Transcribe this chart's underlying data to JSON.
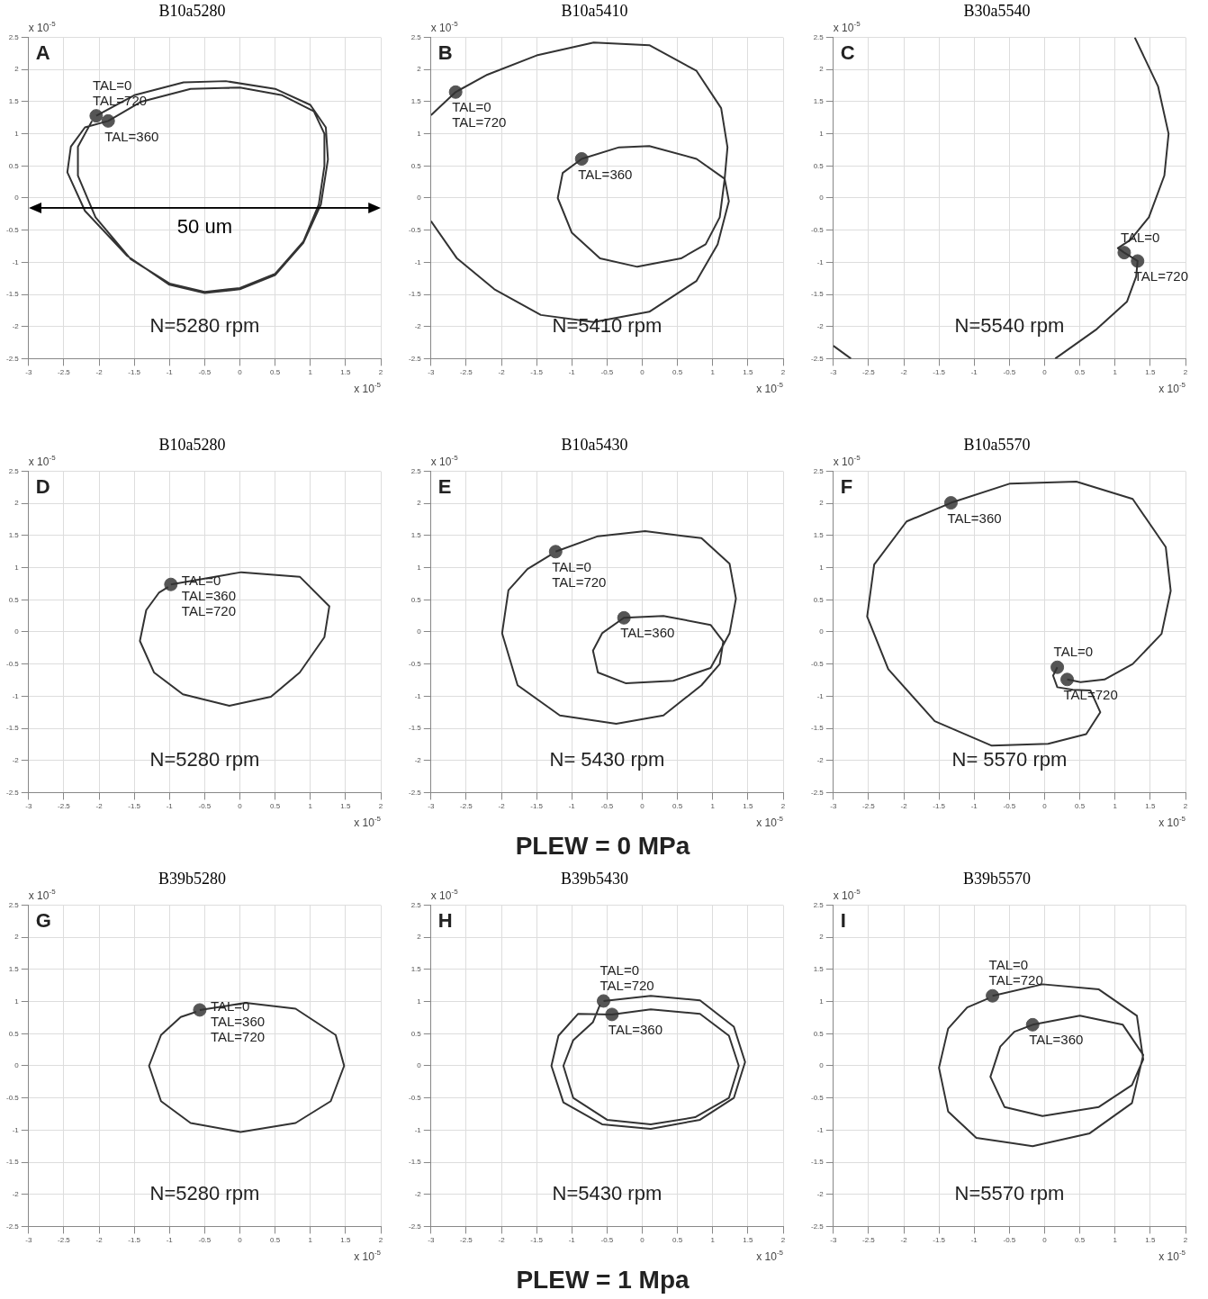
{
  "chart_data": [
    {
      "type": "line",
      "title": "B10a5280",
      "xlabel": "x 10$^{-5}$",
      "ylabel": "x 10$^{-5}$",
      "xlim": [
        -3,
        2
      ],
      "ylim": [
        -2.5,
        2.5
      ],
      "xticks": [
        -3,
        -2.5,
        -2,
        -1.5,
        -1,
        -0.5,
        0,
        0.5,
        1,
        1.5,
        2
      ],
      "yticks": [
        -2.5,
        -2,
        -1.5,
        -1,
        -0.5,
        0,
        0.5,
        1,
        1.5,
        2,
        2.5
      ],
      "grid": true,
      "ref_lines": [
        {
          "axis": "y",
          "value": -0.15,
          "label": "50 um",
          "color": "#000000"
        }
      ],
      "annotations": [
        "A",
        "N=5280 rpm",
        {
          "text": "TAL=0",
          "x": -2.04,
          "y": 1.28
        },
        {
          "text": "TAL=720",
          "x": -2.04,
          "y": 1.28
        },
        {
          "text": "TAL=360",
          "x": -1.87,
          "y": 1.2
        }
      ],
      "series": [
        {
          "type": "line",
          "marker": "none",
          "color": "#333333",
          "x": [
            -2.04,
            -1.5,
            -0.8,
            -0.2,
            0.5,
            1.0,
            1.22,
            1.25,
            1.15,
            0.9,
            0.5,
            0,
            -0.5,
            -1.0,
            -1.6,
            -2.2,
            -2.45,
            -2.4,
            -2.2,
            -1.87,
            -1.4,
            -0.7,
            0,
            0.6,
            1.05,
            1.2,
            1.2,
            1.12,
            0.9,
            0.5,
            0,
            -0.5,
            -1.0,
            -1.55,
            -2.05,
            -2.3,
            -2.3,
            -2.1
          ],
          "values": [
            1.28,
            1.6,
            1.8,
            1.82,
            1.7,
            1.45,
            1.1,
            0.6,
            -0.1,
            -0.7,
            -1.2,
            -1.42,
            -1.48,
            -1.35,
            -0.9,
            -0.2,
            0.4,
            0.8,
            1.1,
            1.2,
            1.5,
            1.7,
            1.72,
            1.6,
            1.35,
            1.0,
            0.5,
            -0.1,
            -0.68,
            -1.18,
            -1.4,
            -1.46,
            -1.33,
            -0.95,
            -0.3,
            0.35,
            0.8,
            1.2
          ]
        },
        {
          "type": "scatter",
          "marker": "circle",
          "color": "#555555",
          "x": [
            -2.04,
            -1.87
          ],
          "values": [
            1.28,
            1.2
          ]
        }
      ]
    },
    {
      "type": "line",
      "title": "B10a5410",
      "xlabel": "x 10$^{-5}$",
      "ylabel": "x 10$^{-5}$",
      "xlim": [
        -3,
        2
      ],
      "ylim": [
        -2.5,
        2.5
      ],
      "xticks": [
        -3,
        -2.5,
        -2,
        -1.5,
        -1,
        -0.5,
        0,
        0.5,
        1,
        1.5,
        2
      ],
      "yticks": [
        -2.5,
        -2,
        -1.5,
        -1,
        -0.5,
        0,
        0.5,
        1,
        1.5,
        2,
        2.5
      ],
      "grid": true,
      "annotations": [
        "B",
        "N=5410 rpm",
        {
          "text": "TAL=0",
          "x": -2.65,
          "y": 1.65
        },
        {
          "text": "TAL=720",
          "x": -2.65,
          "y": 1.65
        },
        {
          "text": "TAL=360",
          "x": -0.86,
          "y": 0.61
        }
      ],
      "series": [
        {
          "type": "line",
          "marker": "none",
          "color": "#333333",
          "x": [
            -3,
            -2.65,
            -2.2,
            -1.5,
            -0.69,
            0.1,
            0.77,
            1.12,
            1.21,
            1.17,
            1.1,
            0.9,
            0.55,
            -0.07,
            -0.6,
            -1.0,
            -1.2,
            -1.13,
            -0.86,
            -0.33,
            0.1,
            0.77,
            1.17,
            1.23,
            1.07,
            0.77,
            0.1,
            -0.69,
            -1.44,
            -2.1,
            -2.63,
            -3
          ],
          "values": [
            1.29,
            1.65,
            1.92,
            2.22,
            2.42,
            2.38,
            1.98,
            1.4,
            0.79,
            0.3,
            -0.3,
            -0.72,
            -0.94,
            -1.07,
            -0.94,
            -0.54,
            0,
            0.39,
            0.61,
            0.79,
            0.81,
            0.61,
            0.3,
            -0.05,
            -0.72,
            -1.29,
            -1.77,
            -1.93,
            -1.82,
            -1.42,
            -0.94,
            -0.36
          ]
        },
        {
          "type": "scatter",
          "marker": "circle",
          "color": "#555555",
          "x": [
            -2.65,
            -0.86
          ],
          "values": [
            1.65,
            0.61
          ]
        }
      ]
    },
    {
      "type": "line",
      "title": "B30a5540",
      "xlabel": "x 10$^{-5}$",
      "ylabel": "x 10$^{-5}$",
      "xlim": [
        -3,
        2
      ],
      "ylim": [
        -2.5,
        2.5
      ],
      "xticks": [
        -3,
        -2.5,
        -2,
        -1.5,
        -1,
        -0.5,
        0,
        0.5,
        1,
        1.5,
        2
      ],
      "yticks": [
        -2.5,
        -2,
        -1.5,
        -1,
        -0.5,
        0,
        0.5,
        1,
        1.5,
        2,
        2.5
      ],
      "grid": true,
      "annotations": [
        "C",
        "N=5540 rpm",
        {
          "text": "TAL=0",
          "x": 1.13,
          "y": -0.85
        },
        {
          "text": "TAL=720",
          "x": 1.32,
          "y": -0.98
        }
      ],
      "series": [
        {
          "type": "line",
          "marker": "none",
          "color": "#333333",
          "x": [
            1.28,
            1.61,
            1.76,
            1.7,
            1.48,
            1.22,
            1.04,
            1.13,
            1.32,
            1.3,
            1.17,
            0.74,
            0.15,
            null,
            -3,
            -2.75
          ],
          "values": [
            2.5,
            1.74,
            1.0,
            0.35,
            -0.3,
            -0.65,
            -0.78,
            -0.85,
            -0.98,
            -1.22,
            -1.61,
            -2.04,
            -2.5,
            null,
            -2.3,
            -2.5
          ]
        },
        {
          "type": "scatter",
          "marker": "circle",
          "color": "#555555",
          "x": [
            1.13,
            1.32
          ],
          "values": [
            -0.85,
            -0.98
          ]
        }
      ]
    },
    {
      "type": "line",
      "title": "B10a5280",
      "xlabel": "x 10$^{-5}$",
      "ylabel": "x 10$^{-5}$",
      "xlim": [
        -3,
        2
      ],
      "ylim": [
        -2.5,
        2.5
      ],
      "xticks": [
        -3,
        -2.5,
        -2,
        -1.5,
        -1,
        -0.5,
        0,
        0.5,
        1,
        1.5,
        2
      ],
      "yticks": [
        -2.5,
        -2,
        -1.5,
        -1,
        -0.5,
        0,
        0.5,
        1,
        1.5,
        2,
        2.5
      ],
      "grid": true,
      "annotations": [
        "D",
        "N=5280 rpm",
        {
          "text": "TAL=0",
          "x": -0.98,
          "y": 0.74
        },
        {
          "text": "TAL=360",
          "x": -0.98,
          "y": 0.74
        },
        {
          "text": "TAL=720",
          "x": -0.98,
          "y": 0.74
        }
      ],
      "series": [
        {
          "type": "line",
          "marker": "none",
          "color": "#333333",
          "x": [
            -0.98,
            0.02,
            0.85,
            1.27,
            1.2,
            0.85,
            0.44,
            -0.15,
            -0.81,
            -1.22,
            -1.42,
            -1.33,
            -1.15,
            -1.02
          ],
          "values": [
            0.74,
            0.93,
            0.86,
            0.4,
            -0.08,
            -0.63,
            -1.01,
            -1.15,
            -0.97,
            -0.63,
            -0.14,
            0.34,
            0.61,
            0.7
          ]
        },
        {
          "type": "scatter",
          "marker": "circle",
          "color": "#555555",
          "x": [
            -0.98
          ],
          "values": [
            0.74
          ]
        }
      ]
    },
    {
      "type": "line",
      "title": "B10a5430",
      "xlabel": "x 10$^{-5}$",
      "ylabel": "x 10$^{-5}$",
      "xlim": [
        -3,
        2
      ],
      "ylim": [
        -2.5,
        2.5
      ],
      "xticks": [
        -3,
        -2.5,
        -2,
        -1.5,
        -1,
        -0.5,
        0,
        0.5,
        1,
        1.5,
        2
      ],
      "yticks": [
        -2.5,
        -2,
        -1.5,
        -1,
        -0.5,
        0,
        0.5,
        1,
        1.5,
        2,
        2.5
      ],
      "grid": true,
      "annotations": [
        "E",
        "N= 5430 rpm",
        "PLEW = 0 MPa",
        {
          "text": "TAL=0",
          "x": -1.23,
          "y": 1.25
        },
        {
          "text": "TAL=720",
          "x": -1.23,
          "y": 1.25
        },
        {
          "text": "TAL=360",
          "x": -0.26,
          "y": 0.22
        }
      ],
      "series": [
        {
          "type": "line",
          "marker": "none",
          "color": "#333333",
          "x": [
            -1.23,
            -0.63,
            0.04,
            0.84,
            1.24,
            1.33,
            1.24,
            1.1,
            0.97,
            0.44,
            -0.23,
            -0.63,
            -0.7,
            -0.57,
            -0.26,
            0.3,
            0.97,
            1.15,
            1.1,
            0.84,
            0.3,
            -0.37,
            -1.17,
            -1.77,
            -1.99,
            -1.9,
            -1.63,
            -1.3
          ],
          "values": [
            1.25,
            1.49,
            1.57,
            1.46,
            1.06,
            0.52,
            -0.02,
            -0.3,
            -0.56,
            -0.76,
            -0.8,
            -0.63,
            -0.29,
            -0.02,
            0.22,
            0.25,
            0.11,
            -0.15,
            -0.5,
            -0.83,
            -1.3,
            -1.43,
            -1.3,
            -0.83,
            -0.02,
            0.65,
            0.98,
            1.2
          ]
        },
        {
          "type": "scatter",
          "marker": "circle",
          "color": "#555555",
          "x": [
            -1.23,
            -0.26
          ],
          "values": [
            1.25,
            0.22
          ]
        }
      ]
    },
    {
      "type": "line",
      "title": "B10a5570",
      "xlabel": "x 10$^{-5}$",
      "ylabel": "x 10$^{-5}$",
      "xlim": [
        -3,
        2
      ],
      "ylim": [
        -2.5,
        2.5
      ],
      "xticks": [
        -3,
        -2.5,
        -2,
        -1.5,
        -1,
        -0.5,
        0,
        0.5,
        1,
        1.5,
        2
      ],
      "yticks": [
        -2.5,
        -2,
        -1.5,
        -1,
        -0.5,
        0,
        0.5,
        1,
        1.5,
        2,
        2.5
      ],
      "grid": true,
      "annotations": [
        "F",
        "N= 5570 rpm",
        {
          "text": "TAL=360",
          "x": -1.33,
          "y": 2.01
        },
        {
          "text": "TAL=0",
          "x": 0.18,
          "y": -0.55
        },
        {
          "text": "TAL=720",
          "x": 0.32,
          "y": -0.74
        }
      ],
      "series": [
        {
          "type": "line",
          "marker": "none",
          "color": "#333333",
          "x": [
            0.18,
            0.12,
            0.18,
            0.4,
            0.65,
            0.79,
            0.59,
            0.05,
            -0.75,
            -1.56,
            -2.22,
            -2.52,
            -2.42,
            -1.96,
            -1.33,
            -0.49,
            0.45,
            1.25,
            1.72,
            1.79,
            1.66,
            1.25,
            0.85,
            0.51,
            0.32
          ],
          "values": [
            -0.55,
            -0.68,
            -0.86,
            -0.9,
            -0.91,
            -1.25,
            -1.59,
            -1.74,
            -1.77,
            -1.39,
            -0.58,
            0.24,
            1.05,
            1.72,
            2.01,
            2.31,
            2.34,
            2.07,
            1.32,
            0.64,
            -0.03,
            -0.5,
            -0.74,
            -0.78,
            -0.74
          ]
        },
        {
          "type": "scatter",
          "marker": "circle",
          "color": "#555555",
          "x": [
            -1.33,
            0.18,
            0.32
          ],
          "values": [
            2.01,
            -0.55,
            -0.74
          ]
        }
      ]
    },
    {
      "type": "line",
      "title": "B39b5280",
      "xlabel": "x 10$^{-5}$",
      "ylabel": "x 10$^{-5}$",
      "xlim": [
        -3,
        2
      ],
      "ylim": [
        -2.5,
        2.5
      ],
      "xticks": [
        -3,
        -2.5,
        -2,
        -1.5,
        -1,
        -0.5,
        0,
        0.5,
        1,
        1.5,
        2
      ],
      "yticks": [
        -2.5,
        -2,
        -1.5,
        -1,
        -0.5,
        0,
        0.5,
        1,
        1.5,
        2,
        2.5
      ],
      "grid": true,
      "annotations": [
        "G",
        "N=5280 rpm",
        {
          "text": "TAL=0",
          "x": -0.57,
          "y": 0.87
        },
        {
          "text": "TAL=360",
          "x": -0.57,
          "y": 0.87
        },
        {
          "text": "TAL=720",
          "x": -0.57,
          "y": 0.87
        }
      ],
      "series": [
        {
          "type": "line",
          "marker": "none",
          "color": "#333333",
          "x": [
            -0.57,
            0.08,
            0.79,
            1.36,
            1.48,
            1.29,
            0.79,
            0.01,
            -0.7,
            -1.12,
            -1.29,
            -1.12,
            -0.84,
            -0.62
          ],
          "values": [
            0.87,
            0.98,
            0.89,
            0.48,
            0,
            -0.55,
            -0.89,
            -1.03,
            -0.89,
            -0.55,
            0,
            0.48,
            0.76,
            0.84
          ]
        },
        {
          "type": "scatter",
          "marker": "circle",
          "color": "#555555",
          "x": [
            -0.57
          ],
          "values": [
            0.87
          ]
        }
      ]
    },
    {
      "type": "line",
      "title": "B39b5430",
      "xlabel": "x 10$^{-5}$",
      "ylabel": "x 10$^{-5}$",
      "xlim": [
        -3,
        2
      ],
      "ylim": [
        -2.5,
        2.5
      ],
      "xticks": [
        -3,
        -2.5,
        -2,
        -1.5,
        -1,
        -0.5,
        0,
        0.5,
        1,
        1.5,
        2
      ],
      "yticks": [
        -2.5,
        -2,
        -1.5,
        -1,
        -0.5,
        0,
        0.5,
        1,
        1.5,
        2,
        2.5
      ],
      "grid": true,
      "annotations": [
        "H",
        "N=5430 rpm",
        "PLEW = 1 Mpa",
        {
          "text": "TAL=0",
          "x": -0.55,
          "y": 1.01
        },
        {
          "text": "TAL=720",
          "x": -0.55,
          "y": 1.01
        },
        {
          "text": "TAL=360",
          "x": -0.43,
          "y": 0.8
        }
      ],
      "series": [
        {
          "type": "line",
          "marker": "none",
          "color": "#333333",
          "x": [
            -0.55,
            0.12,
            0.82,
            1.3,
            1.46,
            1.3,
            0.82,
            0.12,
            -0.57,
            -1.12,
            -1.29,
            -1.19,
            -0.91,
            -0.43,
            0.12,
            0.82,
            1.23,
            1.37,
            1.23,
            0.75,
            0.12,
            -0.5,
            -0.98,
            -1.12,
            -0.98,
            -0.7,
            -0.6
          ],
          "values": [
            1.01,
            1.09,
            1.02,
            0.61,
            0.06,
            -0.5,
            -0.84,
            -0.98,
            -0.91,
            -0.57,
            0,
            0.47,
            0.81,
            0.8,
            0.88,
            0.81,
            0.47,
            0,
            -0.5,
            -0.8,
            -0.91,
            -0.84,
            -0.5,
            0,
            0.4,
            0.68,
            0.95
          ]
        },
        {
          "type": "scatter",
          "marker": "circle",
          "color": "#555555",
          "x": [
            -0.55,
            -0.43
          ],
          "values": [
            1.01,
            0.8
          ]
        }
      ]
    },
    {
      "type": "line",
      "title": "B39b5570",
      "xlabel": "x 10$^{-5}$",
      "ylabel": "x 10$^{-5}$",
      "xlim": [
        -3,
        2
      ],
      "ylim": [
        -2.5,
        2.5
      ],
      "xticks": [
        -3,
        -2.5,
        -2,
        -1.5,
        -1,
        -0.5,
        0,
        0.5,
        1,
        1.5,
        2
      ],
      "yticks": [
        -2.5,
        -2,
        -1.5,
        -1,
        -0.5,
        0,
        0.5,
        1,
        1.5,
        2,
        2.5
      ],
      "grid": true,
      "annotations": [
        "I",
        "N=5570 rpm",
        {
          "text": "TAL=0",
          "x": -0.74,
          "y": 1.09
        },
        {
          "text": "TAL=720",
          "x": -0.74,
          "y": 1.09
        },
        {
          "text": "TAL=360",
          "x": -0.17,
          "y": 0.64
        }
      ],
      "series": [
        {
          "type": "line",
          "marker": "none",
          "color": "#333333",
          "x": [
            -0.74,
            -0.03,
            0.77,
            1.31,
            1.4,
            1.24,
            0.77,
            -0.03,
            -0.57,
            -0.77,
            -0.63,
            -0.43,
            -0.17,
            0.5,
            1.11,
            1.4,
            1.24,
            0.64,
            -0.17,
            -0.97,
            -1.37,
            -1.5,
            -1.37,
            -1.1,
            -0.8
          ],
          "values": [
            1.09,
            1.27,
            1.19,
            0.78,
            0.1,
            -0.3,
            -0.64,
            -0.78,
            -0.64,
            -0.17,
            0.3,
            0.53,
            0.64,
            0.78,
            0.64,
            0.17,
            -0.58,
            -1.05,
            -1.25,
            -1.12,
            -0.71,
            -0.03,
            0.58,
            0.91,
            1.05
          ]
        },
        {
          "type": "scatter",
          "marker": "circle",
          "color": "#555555",
          "x": [
            -0.74,
            -0.17
          ],
          "values": [
            1.09,
            0.64
          ]
        }
      ]
    }
  ]
}
